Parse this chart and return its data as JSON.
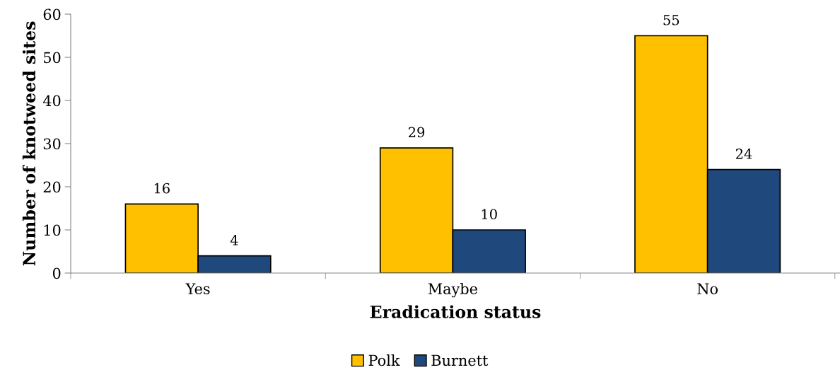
{
  "chart_data": {
    "type": "bar",
    "xlabel": "Eradication status",
    "ylabel": "Number of knotweed sites",
    "categories": [
      "Yes",
      "Maybe",
      "No"
    ],
    "series": [
      {
        "name": "Polk",
        "color": "#ffc000",
        "values": [
          16,
          29,
          55
        ]
      },
      {
        "name": "Burnett",
        "color": "#1f497d",
        "values": [
          4,
          10,
          24
        ]
      }
    ],
    "ylim": [
      0,
      60
    ],
    "yticks": [
      0,
      10,
      20,
      30,
      40,
      50,
      60
    ],
    "grid": false,
    "legend": "bottom",
    "data_labels": true
  }
}
